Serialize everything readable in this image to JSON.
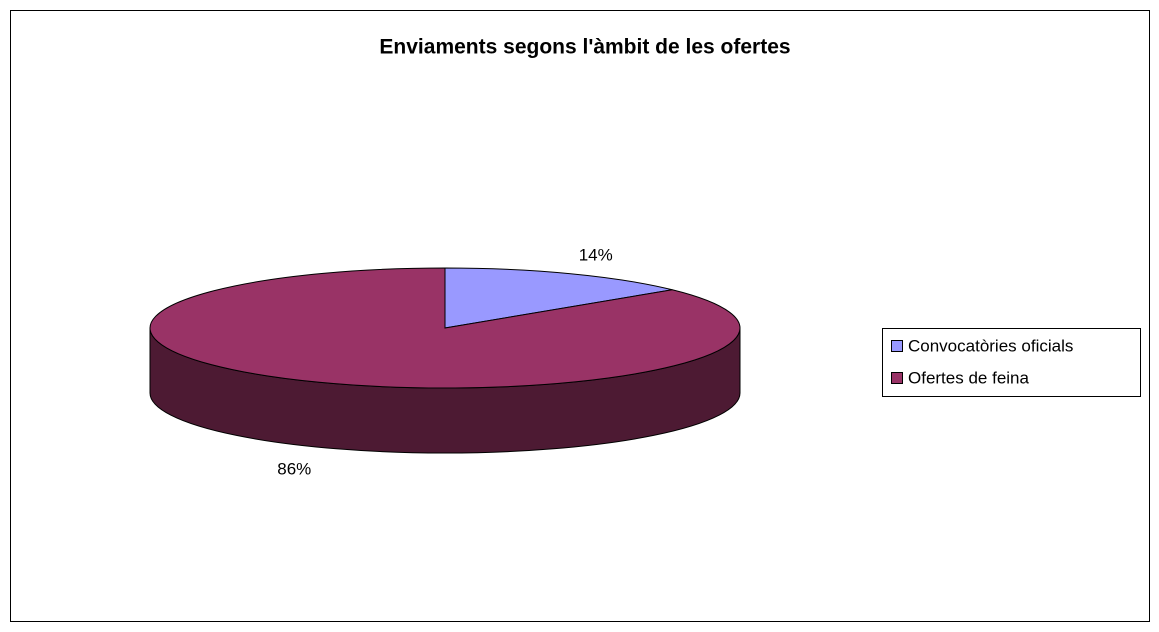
{
  "chart_data": {
    "type": "pie3d",
    "title": "Enviaments segons l'àmbit de les ofertes",
    "categories": [
      "Convocatòries oficials",
      "Ofertes de feina"
    ],
    "values": [
      14,
      86
    ],
    "value_labels": [
      "14%",
      "86%"
    ],
    "colors": [
      "#9999ff",
      "#993366"
    ],
    "legend": "right"
  }
}
